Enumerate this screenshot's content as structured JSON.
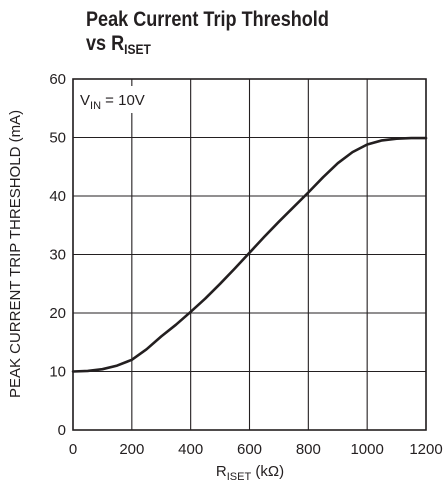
{
  "chart_data": {
    "type": "line",
    "title_line1": "Peak Current Trip Threshold",
    "title_line2_prefix": "vs R",
    "title_line2_sub": "ISET",
    "xlabel_main": "R",
    "xlabel_sub": "ISET",
    "xlabel_unit": " (kΩ)",
    "ylabel": "PEAK CURRENT TRIP THRESHOLD (mA)",
    "annotation_main": "V",
    "annotation_sub": "IN",
    "annotation_value": " = 10V",
    "xlim": [
      0,
      1200
    ],
    "ylim": [
      0,
      60
    ],
    "xticks": [
      0,
      200,
      400,
      600,
      800,
      1000,
      1200
    ],
    "yticks": [
      0,
      10,
      20,
      30,
      40,
      50,
      60
    ],
    "grid": true,
    "series": [
      {
        "x": [
          0,
          50,
          100,
          150,
          200,
          250,
          300,
          350,
          400,
          450,
          500,
          550,
          600,
          650,
          700,
          750,
          800,
          850,
          900,
          950,
          1000,
          1050,
          1100,
          1150,
          1200
        ],
        "y": [
          10,
          10.1,
          10.4,
          11,
          12,
          13.8,
          16,
          18,
          20.2,
          22.5,
          25,
          27.6,
          30.3,
          33,
          35.6,
          38.1,
          40.6,
          43.2,
          45.6,
          47.5,
          48.8,
          49.5,
          49.8,
          49.9,
          49.9
        ]
      }
    ],
    "line_color": "#231f20",
    "grid_color": "#231f20"
  }
}
